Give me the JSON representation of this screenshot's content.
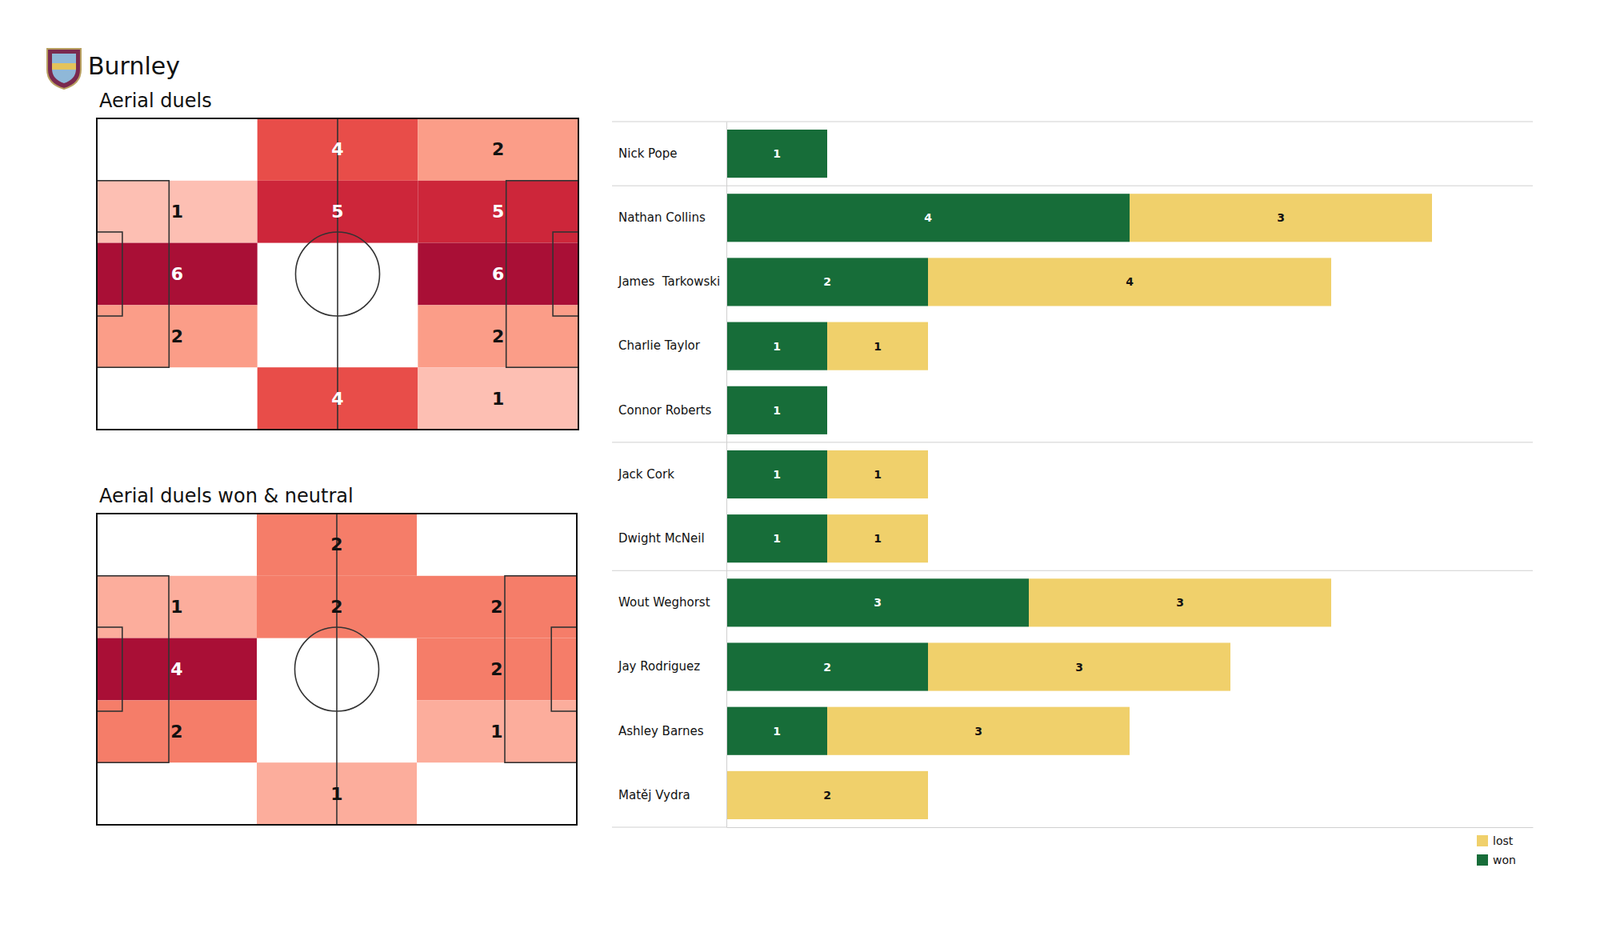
{
  "title": "Burnley",
  "chart_data": [
    {
      "type": "heatmap",
      "title": "Aerial duels",
      "data_labels": true,
      "tick_labels": false,
      "cells": [
        [
          null,
          4,
          2
        ],
        [
          1,
          5,
          5
        ],
        [
          6,
          null,
          6
        ],
        [
          2,
          null,
          2
        ],
        [
          null,
          4,
          1
        ]
      ]
    },
    {
      "type": "heatmap",
      "title": "Aerial duels won & neutral",
      "data_labels": true,
      "tick_labels": false,
      "cells": [
        [
          null,
          2,
          null
        ],
        [
          1,
          2,
          2
        ],
        [
          4,
          null,
          2
        ],
        [
          2,
          null,
          1
        ],
        [
          null,
          1,
          null
        ]
      ]
    },
    {
      "type": "bar",
      "orientation": "horizontal",
      "stacked": true,
      "data_labels": true,
      "tick_labels": "y",
      "legend": "lower right",
      "xlim": [
        0,
        8
      ],
      "categories": [
        "Nick Pope",
        "Nathan Collins",
        "James  Tarkowski",
        "Charlie Taylor",
        "Connor Roberts",
        "Jack Cork",
        "Dwight McNeil",
        "Wout Weghorst",
        "Jay Rodriguez",
        "Ashley Barnes",
        "Matěj Vydra"
      ],
      "series": [
        {
          "name": "won",
          "color": "#176d39",
          "values": [
            1,
            4,
            2,
            1,
            1,
            1,
            1,
            3,
            2,
            1,
            null
          ]
        },
        {
          "name": "lost",
          "color": "#f0d06b",
          "values": [
            null,
            3,
            4,
            1,
            null,
            1,
            1,
            3,
            3,
            3,
            2
          ]
        }
      ]
    }
  ]
}
